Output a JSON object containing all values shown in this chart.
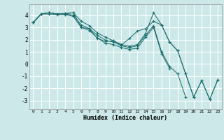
{
  "xlabel": "Humidex (Indice chaleur)",
  "background_color": "#cce8e8",
  "grid_color": "#ffffff",
  "line_color": "#1a6b6b",
  "xlim": [
    -0.5,
    23.5
  ],
  "ylim": [
    -3.7,
    4.9
  ],
  "xticks": [
    0,
    1,
    2,
    3,
    4,
    5,
    6,
    7,
    8,
    9,
    10,
    11,
    12,
    13,
    14,
    15,
    16,
    17,
    18,
    19,
    20,
    21,
    22,
    23
  ],
  "yticks": [
    -3,
    -2,
    -1,
    0,
    1,
    2,
    3,
    4
  ],
  "series": [
    [
      3.4,
      4.1,
      4.2,
      4.1,
      4.1,
      4.2,
      3.0,
      2.9,
      2.1,
      1.85,
      1.9,
      1.55,
      2.1,
      2.7,
      2.9,
      3.5,
      3.2,
      1.8,
      1.1,
      -0.8,
      -2.7,
      -1.35,
      -2.9,
      -1.3
    ],
    [
      3.4,
      4.1,
      4.2,
      4.1,
      4.15,
      4.2,
      3.5,
      3.15,
      2.55,
      2.2,
      1.9,
      1.6,
      1.45,
      1.6,
      2.5,
      4.2,
      3.2,
      1.8,
      1.1,
      -0.8,
      -2.7,
      -1.35,
      -2.9,
      -1.3
    ],
    [
      3.4,
      4.1,
      4.2,
      4.1,
      4.1,
      4.0,
      3.2,
      2.9,
      2.35,
      1.95,
      1.8,
      1.5,
      1.35,
      1.5,
      2.35,
      3.15,
      1.0,
      -0.2,
      -0.8,
      -2.7,
      null,
      null,
      null,
      null
    ],
    [
      3.4,
      4.1,
      4.1,
      4.05,
      4.05,
      3.9,
      3.0,
      2.75,
      2.15,
      1.7,
      1.6,
      1.35,
      1.2,
      1.3,
      2.2,
      3.0,
      0.85,
      -0.35,
      null,
      null,
      null,
      null,
      null,
      null
    ]
  ]
}
